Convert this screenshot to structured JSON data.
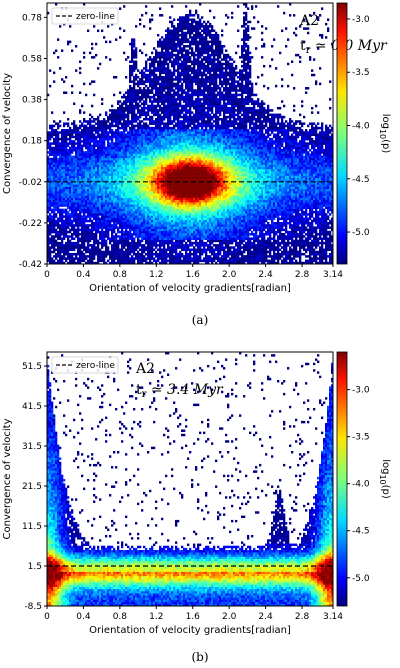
{
  "chart_data": [
    {
      "type": "heatmap",
      "panel": "A2",
      "annotation": "t_r ≃ 0.0 Myr",
      "legend": [
        "zero-line"
      ],
      "legend_placement": "top-left",
      "xlabel": "Orientation of velocity gradients[radian]",
      "ylabel": "Convergence of velocity",
      "xlim": [
        0,
        3.14
      ],
      "ylim": [
        -0.42,
        0.85
      ],
      "xticks": [
        "0",
        "0.4",
        "0.8",
        "1.2",
        "1.6",
        "2.0",
        "2.4",
        "2.8",
        "3.14"
      ],
      "yticks": [
        "0.78",
        "0.58",
        "0.38",
        "0.18",
        "-0.02",
        "-0.22",
        "-0.42"
      ],
      "xtick_values": [
        0,
        0.4,
        0.8,
        1.2,
        1.6,
        2.0,
        2.4,
        2.8,
        3.14
      ],
      "ytick_values": [
        0.78,
        0.58,
        0.38,
        0.18,
        -0.02,
        -0.22,
        -0.42
      ],
      "zero_line_y": -0.02,
      "colorbar_label": "log10(p)",
      "colorbar_ticks": [
        "-3.0",
        "-3.5",
        "-4.0",
        "-4.5",
        "-5.0"
      ],
      "colorbar_range": [
        -5.3,
        -2.85
      ],
      "caption": "(a)"
    },
    {
      "type": "heatmap",
      "panel": "A2",
      "annotation": "t_r ≃ 3.4 Myr",
      "legend": [
        "zero-line"
      ],
      "legend_placement": "top-left",
      "xlabel": "Orientation of velocity gradients[radian]",
      "ylabel": "Convergence of velocity",
      "xlim": [
        0,
        3.14
      ],
      "ylim": [
        -8.5,
        55
      ],
      "xticks": [
        "0",
        "0.4",
        "0.8",
        "1.2",
        "1.6",
        "2.0",
        "2.4",
        "2.8",
        "3.14"
      ],
      "yticks": [
        "51.5",
        "41.5",
        "31.5",
        "21.5",
        "11.5",
        "1.5",
        "-8.5"
      ],
      "xtick_values": [
        0,
        0.4,
        0.8,
        1.2,
        1.6,
        2.0,
        2.4,
        2.8,
        3.14
      ],
      "ytick_values": [
        51.5,
        41.5,
        31.5,
        21.5,
        11.5,
        1.5,
        -8.5
      ],
      "zero_line_y": 1.5,
      "colorbar_label": "log10(p)",
      "colorbar_ticks": [
        "-3.0",
        "-3.5",
        "-4.0",
        "-4.5",
        "-5.0"
      ],
      "colorbar_range": [
        -5.3,
        -2.6
      ],
      "caption": "(b)"
    }
  ]
}
